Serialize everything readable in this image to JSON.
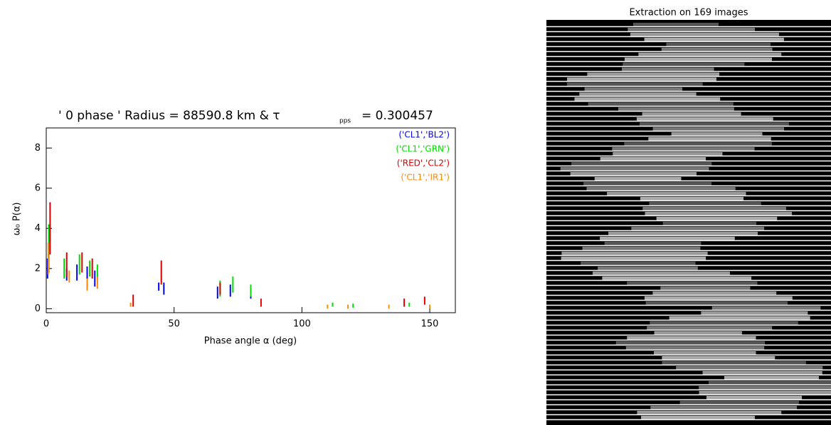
{
  "chart_data": {
    "type": "errorbar",
    "title": "' 0 phase ' Radius = 88590.8 km & τ",
    "title_subscript": "pps",
    "title_end": "= 0.300457",
    "x_label": "Phase angle α (deg)",
    "y_label": "ω₀ P(α)",
    "xlim": [
      0,
      160
    ],
    "xticks": [
      0,
      50,
      100,
      150
    ],
    "ylim": [
      -0.2,
      9
    ],
    "yticks": [
      0,
      2,
      4,
      6,
      8
    ],
    "legend": "top-right",
    "series": [
      {
        "name": "('CL1','BL2')",
        "color": "#0000ff",
        "x": [
          0.5,
          8,
          12,
          16,
          19,
          44,
          46,
          67,
          72,
          80
        ],
        "values": [
          2,
          1.7,
          1.8,
          1.6,
          1.5,
          1.1,
          1.0,
          0.8,
          0.9,
          0.7
        ],
        "errors": [
          0.5,
          0.3,
          0.4,
          0.5,
          0.4,
          0.2,
          0.3,
          0.3,
          0.3,
          0.2
        ]
      },
      {
        "name": "('CL1','GRN')",
        "color": "#00dd00",
        "x": [
          1,
          7,
          13,
          17,
          20,
          68,
          73,
          80,
          112,
          120,
          142
        ],
        "values": [
          3,
          2,
          2.2,
          2,
          1.8,
          1.0,
          1.2,
          0.9,
          0.2,
          0.15,
          0.2
        ],
        "errors": [
          1.2,
          0.5,
          0.5,
          0.4,
          0.4,
          0.4,
          0.4,
          0.3,
          0.1,
          0.1,
          0.1
        ]
      },
      {
        "name": "('RED','CL2')",
        "color": "#dd0000",
        "x": [
          1.5,
          8,
          14,
          18,
          34,
          45,
          68,
          84,
          140,
          148
        ],
        "values": [
          4,
          2.2,
          2.3,
          2,
          0.4,
          1.8,
          1.0,
          0.3,
          0.3,
          0.4
        ],
        "errors": [
          1.3,
          0.6,
          0.5,
          0.5,
          0.3,
          0.6,
          0.3,
          0.2,
          0.2,
          0.2
        ]
      },
      {
        "name": "('CL1','IR1')",
        "color": "#ff8800",
        "x": [
          0.8,
          9,
          16,
          20,
          33,
          110,
          118,
          134,
          150
        ],
        "values": [
          2.5,
          1.6,
          1.2,
          1.3,
          0.2,
          0.1,
          0.1,
          0.1,
          0.1
        ],
        "errors": [
          0.8,
          0.3,
          0.3,
          0.3,
          0.1,
          0.1,
          0.1,
          0.1,
          0.1
        ]
      }
    ]
  },
  "image_panel": {
    "title": "Extraction on 169 images"
  }
}
